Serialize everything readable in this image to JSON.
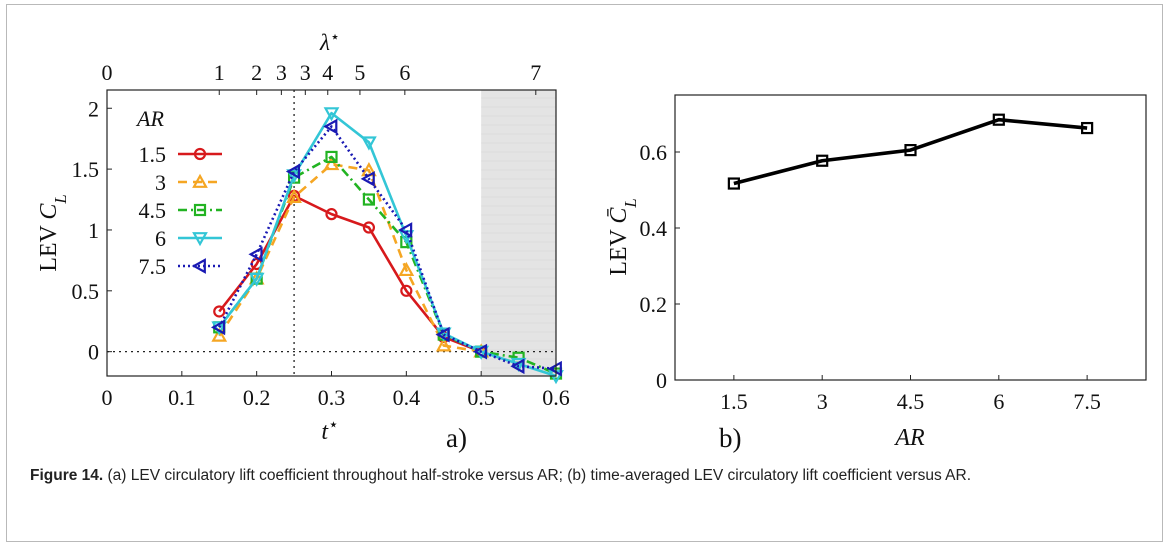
{
  "caption": {
    "label": "Figure 14.",
    "text": " (a) LEV circulatory lift coefficient throughout half-stroke versus AR; (b) time-averaged LEV circulatory lift coefficient versus AR."
  },
  "chart_data": [
    {
      "type": "line",
      "panel_label": "a)",
      "xlabel": "t*",
      "ylabel": "LEV C_L",
      "top_xlabel": "λ*",
      "xlim": [
        0,
        0.6
      ],
      "ylim": [
        -0.2,
        2.15
      ],
      "xticks": [
        "0",
        "0.1",
        "0.2",
        "0.3",
        "0.4",
        "0.5",
        "0.6"
      ],
      "yticks": [
        "0",
        "0.5",
        "1",
        "1.5",
        "2"
      ],
      "top_xticks": [
        {
          "label": "0",
          "x": 0.0
        },
        {
          "label": "1",
          "x": 0.15
        },
        {
          "label": "2",
          "x": 0.2
        },
        {
          "label": "3",
          "x": 0.233
        },
        {
          "label": "3",
          "x": 0.265
        },
        {
          "label": "4",
          "x": 0.295
        },
        {
          "label": "5",
          "x": 0.338
        },
        {
          "label": "6",
          "x": 0.398
        },
        {
          "label": "7",
          "x": 0.573
        }
      ],
      "legend_title": "AR",
      "legend_position": "left",
      "shaded_region": [
        0.5,
        0.6
      ],
      "reference_lines": {
        "vertical_x": 0.25,
        "horizontal_y": 0
      },
      "series": [
        {
          "name": "1.5",
          "color": "#d7191c",
          "dash": "",
          "marker": "circle",
          "x": [
            0.15,
            0.2,
            0.25,
            0.3,
            0.35,
            0.4,
            0.45,
            0.5
          ],
          "y": [
            0.33,
            0.72,
            1.28,
            1.13,
            1.02,
            0.5,
            0.12,
            0.0
          ]
        },
        {
          "name": "3",
          "color": "#f5a623",
          "dash": "9,6",
          "marker": "triangle-up",
          "x": [
            0.15,
            0.2,
            0.25,
            0.3,
            0.35,
            0.4,
            0.45,
            0.5
          ],
          "y": [
            0.13,
            0.6,
            1.27,
            1.54,
            1.49,
            0.67,
            0.05,
            0.0
          ]
        },
        {
          "name": "4.5",
          "color": "#22b322",
          "dash": "9,4,2,4",
          "marker": "square",
          "x": [
            0.15,
            0.2,
            0.25,
            0.3,
            0.35,
            0.4,
            0.45,
            0.5,
            0.55,
            0.6
          ],
          "y": [
            0.2,
            0.6,
            1.43,
            1.6,
            1.25,
            0.9,
            0.14,
            0.0,
            -0.05,
            -0.18
          ]
        },
        {
          "name": "6",
          "color": "#33c6d6",
          "dash": "",
          "marker": "triangle-down",
          "x": [
            0.15,
            0.2,
            0.25,
            0.3,
            0.35,
            0.4,
            0.45,
            0.5,
            0.55,
            0.6
          ],
          "y": [
            0.2,
            0.6,
            1.45,
            1.96,
            1.72,
            0.95,
            0.15,
            0.0,
            -0.1,
            -0.2
          ]
        },
        {
          "name": "7.5",
          "color": "#1a1ab3",
          "dash": "2,3",
          "marker": "triangle-left",
          "x": [
            0.15,
            0.2,
            0.25,
            0.3,
            0.35,
            0.4,
            0.45,
            0.5,
            0.55,
            0.6
          ],
          "y": [
            0.2,
            0.8,
            1.48,
            1.85,
            1.42,
            1.0,
            0.14,
            0.0,
            -0.12,
            -0.14
          ]
        }
      ]
    },
    {
      "type": "line",
      "panel_label": "b)",
      "xlabel": "AR",
      "ylabel": "LEV C̄_L",
      "xlim": [
        0.5,
        8.5
      ],
      "ylim": [
        0,
        0.75
      ],
      "xticks": [
        "1.5",
        "3",
        "4.5",
        "6",
        "7.5"
      ],
      "yticks": [
        "0",
        "0.2",
        "0.4",
        "0.6"
      ],
      "series": [
        {
          "color": "#000000",
          "marker": "square",
          "x": [
            1.5,
            3,
            4.5,
            6,
            7.5
          ],
          "y": [
            0.517,
            0.577,
            0.605,
            0.685,
            0.663
          ]
        }
      ]
    }
  ]
}
